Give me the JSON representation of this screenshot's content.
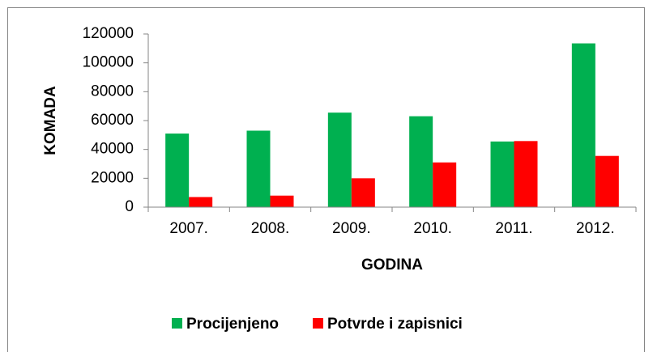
{
  "chart_data": {
    "type": "bar",
    "y_label": "KOMADA",
    "x_label": "GODINA",
    "categories": [
      "2007.",
      "2008.",
      "2009.",
      "2010.",
      "2011.",
      "2012."
    ],
    "series": [
      {
        "name": "Procijenjeno",
        "color": "#00b050",
        "values": [
          51000,
          53000,
          65500,
          63000,
          45500,
          113500
        ]
      },
      {
        "name": "Potvrde i zapisnici",
        "color": "#ff0000",
        "values": [
          7000,
          8000,
          20000,
          31000,
          45800,
          35500
        ]
      }
    ],
    "ylim": [
      0,
      120000
    ],
    "yticks": [
      0,
      20000,
      40000,
      60000,
      80000,
      100000,
      120000
    ],
    "legend": "bottom"
  }
}
